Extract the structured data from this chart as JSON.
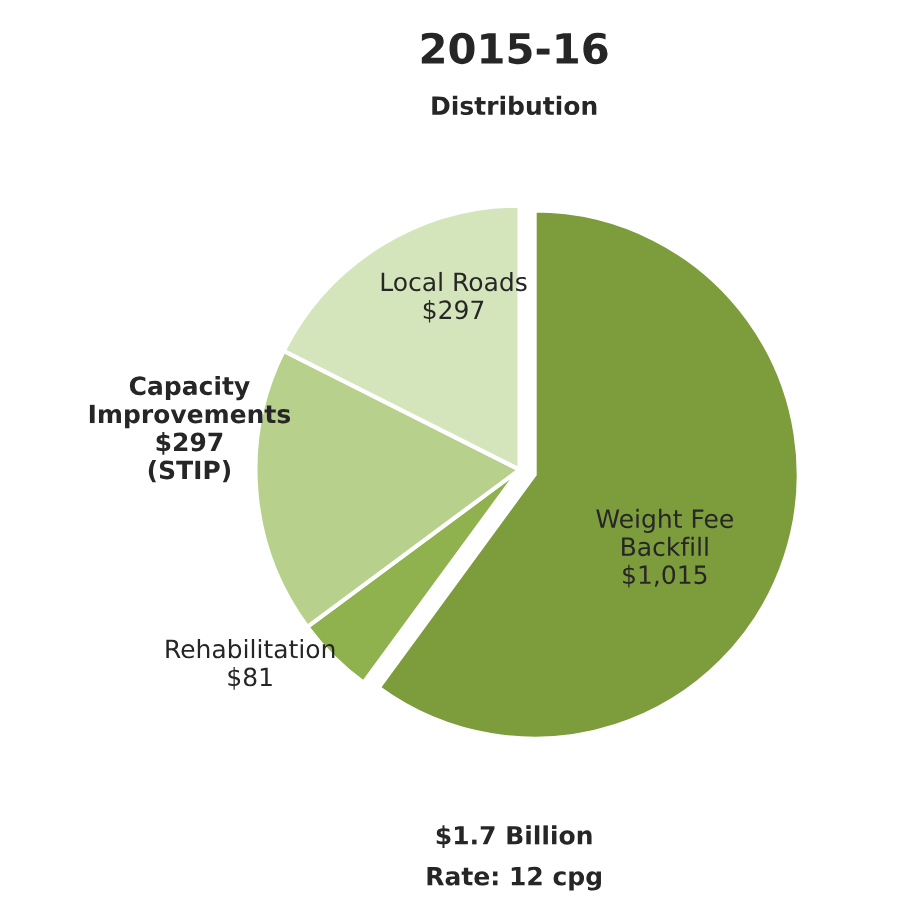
{
  "chart_data": {
    "type": "pie",
    "title": "2015-16",
    "subtitle": "Distribution",
    "categories": [
      "Weight Fee\nBackfill",
      "Rehabilitation",
      "Capacity\nImprovements",
      "Local Roads"
    ],
    "values": [
      1015,
      81,
      297,
      297
    ],
    "value_labels": [
      "$1,015",
      "$81",
      "$297\n(STIP)",
      "$297"
    ],
    "colors": [
      "#7d9c3b",
      "#8fb24e",
      "#b7d08c",
      "#d5e5bb"
    ],
    "annotations": [
      "$1.7 Billion",
      "Rate: 12 cpg"
    ]
  }
}
